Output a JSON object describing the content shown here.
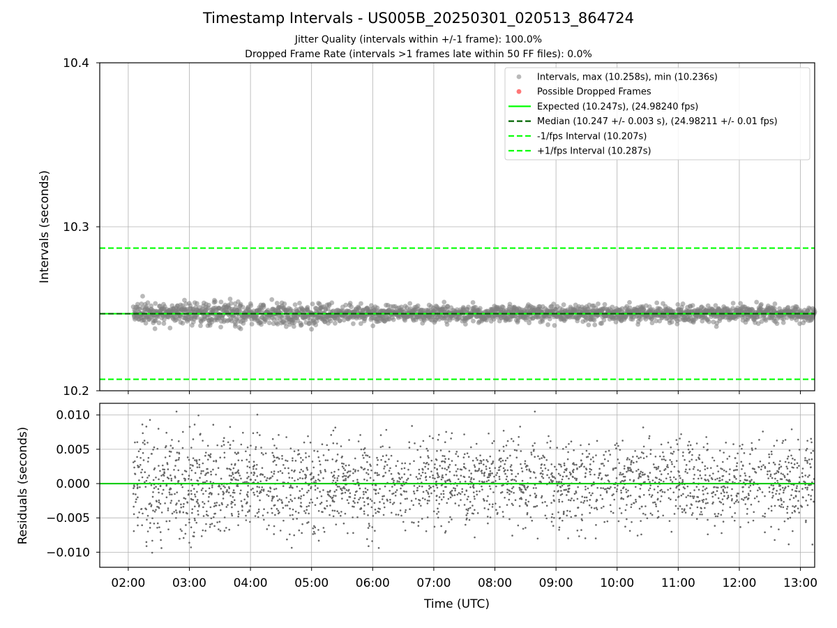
{
  "chart_data": [
    {
      "type": "scatter",
      "title": "Timestamp Intervals - US005B_20250301_020513_864724",
      "subtitle_lines": [
        "Jitter Quality (intervals within +/-1 frame): 100.0%",
        "Dropped Frame Rate (intervals >1 frames late within 50 FF files): 0.0%"
      ],
      "xlabel": "",
      "ylabel": "Intervals (seconds)",
      "xlim": [
        "01:32",
        "13:14"
      ],
      "ylim": [
        10.2,
        10.4
      ],
      "yticks": [
        "10.2",
        "10.3",
        "10.4"
      ],
      "grid": true,
      "legend_position": "top-right",
      "legend": [
        "Intervals, max (10.258s), min (10.236s)",
        "Possible Dropped Frames",
        "Expected (10.247s), (24.98240 fps)",
        "Median (10.247 +/- 0.003 s), (24.98211 +/- 0.01 fps)",
        "-1/fps Interval (10.207s)",
        "+1/fps Interval (10.287s)"
      ],
      "series": [
        {
          "name": "Intervals, max (10.258s), min (10.236s)",
          "kind": "scatter",
          "x_range": [
            "02:05",
            "13:14"
          ],
          "center": 10.247,
          "spread": 0.003,
          "max": 10.258,
          "min": 10.236,
          "color": "#808080"
        },
        {
          "name": "Possible Dropped Frames",
          "kind": "scatter",
          "values": [],
          "color": "#ff5555"
        },
        {
          "name": "Expected (10.247s), (24.98240 fps)",
          "kind": "hline",
          "y": 10.247,
          "color": "#00ff00",
          "style": "solid"
        },
        {
          "name": "Median (10.247 +/- 0.003 s), (24.98211 +/- 0.01 fps)",
          "kind": "hline",
          "y": 10.247,
          "color": "#006400",
          "style": "dashed"
        },
        {
          "name": "-1/fps Interval (10.207s)",
          "kind": "hline",
          "y": 10.207,
          "color": "#00ff00",
          "style": "dashed"
        },
        {
          "name": "+1/fps Interval (10.287s)",
          "kind": "hline",
          "y": 10.287,
          "color": "#00ff00",
          "style": "dashed"
        }
      ]
    },
    {
      "type": "scatter",
      "title": "",
      "xlabel": "Time (UTC)",
      "ylabel": "Residuals (seconds)",
      "xlim": [
        "01:32",
        "13:14"
      ],
      "ylim": [
        -0.0122,
        0.0117
      ],
      "xticks": [
        "02:00",
        "03:00",
        "04:00",
        "05:00",
        "06:00",
        "07:00",
        "08:00",
        "09:00",
        "10:00",
        "11:00",
        "12:00",
        "13:00"
      ],
      "yticks": [
        "−0.010",
        "−0.005",
        "0.000",
        "0.005",
        "0.010"
      ],
      "ytick_values": [
        -0.01,
        -0.005,
        0,
        0.005,
        0.01
      ],
      "grid": true,
      "series": [
        {
          "name": "",
          "kind": "scatter",
          "x_range": [
            "02:05",
            "13:14"
          ],
          "center": 0.0,
          "spread": 0.003,
          "max": 0.0105,
          "min": -0.0112,
          "color": "#666666"
        },
        {
          "name": "",
          "kind": "hline",
          "y": 0.0,
          "color": "#00cc00",
          "style": "solid"
        }
      ]
    }
  ]
}
